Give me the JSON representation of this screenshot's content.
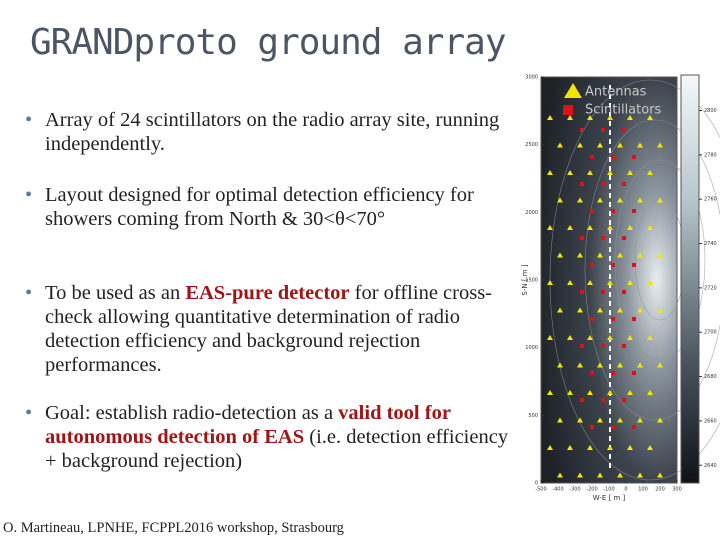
{
  "title": "GRANDproto ground array",
  "bullets": [
    [
      {
        "text": "Array of 24 scintillators on the radio array site, running independently.",
        "em": false
      }
    ],
    [
      {
        "text": "Layout designed for optimal detection efficiency for showers coming from North & 30<θ<70°",
        "em": false
      }
    ],
    [
      {
        "text": "To be used as an ",
        "em": false
      },
      {
        "text": "EAS-pure detector",
        "em": true
      },
      {
        "text": " for offline cross-check allowing quantitative determination of radio detection efficiency and background rejection performances.",
        "em": false
      }
    ],
    [
      {
        "text": "Goal: establish radio-detection as a ",
        "em": false
      },
      {
        "text": "valid tool for autonomous detection of EAS",
        "em": true
      },
      {
        "text": " (i.e. detection efficiency + background rejection)",
        "em": false
      }
    ]
  ],
  "footer": "O. Martineau, LPNHE, FCPPL2016 workshop, Strasbourg",
  "figure": {
    "legend": [
      {
        "name": "Antennas",
        "color": "#f2e600",
        "marker": "triangle"
      },
      {
        "name": "Scintillators",
        "color": "#e0101a",
        "marker": "square"
      }
    ],
    "xlabel": "W-E [ m ]",
    "ylabel": "S-N [ m ]",
    "xlim": [
      -500,
      300
    ],
    "ylim": [
      0,
      3000
    ],
    "xticks": [
      -500,
      -400,
      -300,
      -200,
      -100,
      0,
      100,
      200,
      300
    ],
    "yticks": [
      0,
      500,
      1000,
      1500,
      2000,
      2500,
      3000
    ],
    "clim": [
      2632,
      2816
    ],
    "cticks": [
      2640,
      2660,
      2680,
      2700,
      2720,
      2740,
      2760,
      2780,
      2800
    ]
  }
}
